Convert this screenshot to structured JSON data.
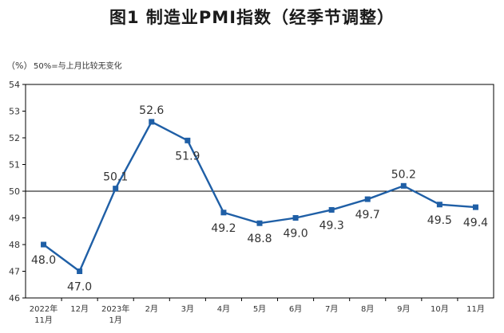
{
  "chart_data": {
    "type": "line",
    "title": "图1  制造业PMI指数（经季节调整）",
    "unit": "（%）",
    "note": "50%=与上月比较无变化",
    "categories": [
      [
        "2022年",
        "11月"
      ],
      [
        "12月"
      ],
      [
        "2023年",
        "1月"
      ],
      [
        "2月"
      ],
      [
        "3月"
      ],
      [
        "4月"
      ],
      [
        "5月"
      ],
      [
        "6月"
      ],
      [
        "7月"
      ],
      [
        "8月"
      ],
      [
        "9月"
      ],
      [
        "10月"
      ],
      [
        "11月"
      ]
    ],
    "values": [
      48.0,
      47.0,
      50.1,
      52.6,
      51.9,
      49.2,
      48.8,
      49.0,
      49.3,
      49.7,
      50.2,
      49.5,
      49.4
    ],
    "data_labels": [
      "48.0",
      "47.0",
      "50.1",
      "52.6",
      "51.9",
      "49.2",
      "48.8",
      "49.0",
      "49.3",
      "49.7",
      "50.2",
      "49.5",
      "49.4"
    ],
    "ylim": [
      46,
      54
    ],
    "yticks": [
      "46",
      "47",
      "48",
      "49",
      "50",
      "51",
      "52",
      "53",
      "54"
    ],
    "reference_line": 50,
    "grid": false,
    "colors": {
      "line": "#1f5fa6",
      "marker": "#1f5fa6",
      "axis": "#000000"
    }
  }
}
